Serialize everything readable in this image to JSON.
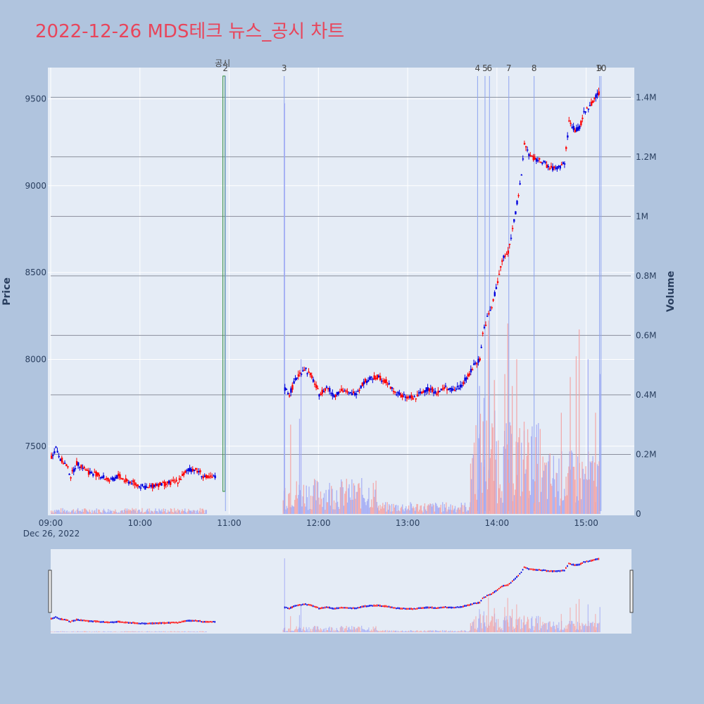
{
  "title": "2022-12-26 MDS테크 뉴스_공시 차트",
  "colors": {
    "title": "#e8455b",
    "up": "#ff0000",
    "down": "#0000dd",
    "plot_bg": "#e5ecf6",
    "paper_bg": "#b0c4de",
    "grid": "#ffffff",
    "event_line": "#8ea4f0",
    "disclosure_line": "#2e8b3a",
    "axis_text": "#2a3f5f"
  },
  "chart_data": {
    "type": "candlestick",
    "x_axis": {
      "ticks": [
        {
          "label": "09:00",
          "t": 540
        },
        {
          "label": "10:00",
          "t": 600
        },
        {
          "label": "11:00",
          "t": 660
        },
        {
          "label": "12:00",
          "t": 720
        },
        {
          "label": "13:00",
          "t": 780
        },
        {
          "label": "14:00",
          "t": 840
        },
        {
          "label": "15:00",
          "t": 900
        }
      ],
      "date_label": "Dec 26, 2022",
      "range": [
        540,
        930
      ]
    },
    "y_price": {
      "label": "Price",
      "ticks": [
        7500,
        8000,
        8500,
        9000,
        9500
      ],
      "range": [
        7110,
        9680
      ]
    },
    "y_volume": {
      "label": "Volume",
      "ticks": [
        {
          "label": "0",
          "v": 0
        },
        {
          "label": "0.2M",
          "v": 200000
        },
        {
          "label": "0.4M",
          "v": 400000
        },
        {
          "label": "0.6M",
          "v": 600000
        },
        {
          "label": "0.8M",
          "v": 800000
        },
        {
          "label": "1M",
          "v": 1000000
        },
        {
          "label": "1.2M",
          "v": 1200000
        },
        {
          "label": "1.4M",
          "v": 1400000
        }
      ],
      "range": [
        0,
        1500000
      ]
    },
    "price_path": [
      [
        540,
        7440
      ],
      [
        543,
        7490
      ],
      [
        546,
        7430
      ],
      [
        550,
        7390
      ],
      [
        553,
        7330
      ],
      [
        557,
        7400
      ],
      [
        560,
        7390
      ],
      [
        565,
        7350
      ],
      [
        570,
        7340
      ],
      [
        575,
        7320
      ],
      [
        580,
        7300
      ],
      [
        585,
        7330
      ],
      [
        590,
        7300
      ],
      [
        595,
        7290
      ],
      [
        600,
        7270
      ],
      [
        605,
        7260
      ],
      [
        610,
        7280
      ],
      [
        615,
        7280
      ],
      [
        620,
        7290
      ],
      [
        625,
        7300
      ],
      [
        630,
        7350
      ],
      [
        635,
        7370
      ],
      [
        640,
        7350
      ],
      [
        643,
        7320
      ],
      [
        650,
        7320
      ],
      [
        696,
        7840
      ],
      [
        700,
        7800
      ],
      [
        705,
        7900
      ],
      [
        710,
        7950
      ],
      [
        715,
        7900
      ],
      [
        720,
        7800
      ],
      [
        725,
        7840
      ],
      [
        730,
        7790
      ],
      [
        735,
        7830
      ],
      [
        740,
        7800
      ],
      [
        745,
        7810
      ],
      [
        750,
        7870
      ],
      [
        755,
        7890
      ],
      [
        760,
        7900
      ],
      [
        765,
        7870
      ],
      [
        770,
        7820
      ],
      [
        775,
        7790
      ],
      [
        780,
        7780
      ],
      [
        785,
        7780
      ],
      [
        790,
        7820
      ],
      [
        795,
        7830
      ],
      [
        800,
        7810
      ],
      [
        805,
        7840
      ],
      [
        810,
        7820
      ],
      [
        815,
        7850
      ],
      [
        820,
        7900
      ],
      [
        825,
        7980
      ],
      [
        828,
        8000
      ],
      [
        830,
        8150
      ],
      [
        833,
        8240
      ],
      [
        836,
        8300
      ],
      [
        840,
        8450
      ],
      [
        843,
        8570
      ],
      [
        847,
        8620
      ],
      [
        850,
        8750
      ],
      [
        853,
        8900
      ],
      [
        856,
        9050
      ],
      [
        858,
        9250
      ],
      [
        861,
        9180
      ],
      [
        865,
        9150
      ],
      [
        870,
        9140
      ],
      [
        875,
        9100
      ],
      [
        880,
        9100
      ],
      [
        885,
        9130
      ],
      [
        888,
        9370
      ],
      [
        892,
        9320
      ],
      [
        895,
        9330
      ],
      [
        898,
        9420
      ],
      [
        902,
        9460
      ],
      [
        906,
        9520
      ],
      [
        908,
        9530
      ]
    ],
    "volume_pattern": [
      [
        540,
        645,
        15000
      ],
      [
        696,
        760,
        90000
      ],
      [
        760,
        822,
        30000
      ],
      [
        822,
        840,
        260000
      ],
      [
        840,
        870,
        230000
      ],
      [
        870,
        909,
        160000
      ]
    ],
    "volume_spikes": [
      [
        697,
        1380000
      ],
      [
        701,
        300000
      ],
      [
        708,
        520000
      ],
      [
        707,
        320000
      ],
      [
        828,
        430000
      ],
      [
        831,
        390000
      ],
      [
        834,
        650000
      ],
      [
        838,
        450000
      ],
      [
        845,
        470000
      ],
      [
        847,
        640000
      ],
      [
        850,
        430000
      ],
      [
        853,
        520000
      ],
      [
        858,
        310000
      ],
      [
        861,
        240000
      ],
      [
        883,
        340000
      ],
      [
        889,
        460000
      ],
      [
        893,
        530000
      ],
      [
        895,
        620000
      ],
      [
        901,
        520000
      ],
      [
        906,
        340000
      ],
      [
        909,
        470000
      ]
    ],
    "disclosure_marker": {
      "label": "공시",
      "t": 656.5
    },
    "event_markers": [
      {
        "label": "2",
        "t": 657.5
      },
      {
        "label": "3",
        "t": 697
      },
      {
        "label": "4",
        "t": 827
      },
      {
        "label": "5",
        "t": 832
      },
      {
        "label": "6",
        "t": 835
      },
      {
        "label": "7",
        "t": 848
      },
      {
        "label": "8",
        "t": 865
      },
      {
        "label": "9",
        "t": 909
      },
      {
        "label": "10",
        "t": 910
      }
    ]
  }
}
